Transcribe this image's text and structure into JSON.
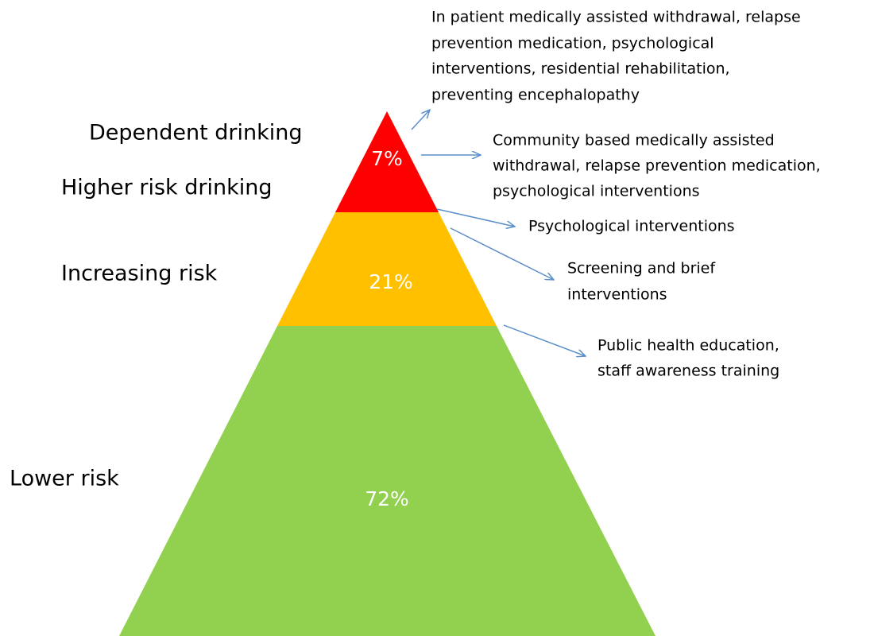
{
  "levels": [
    {
      "label": "Dependent drinking",
      "percent": "7%"
    },
    {
      "label": "Higher risk drinking"
    },
    {
      "label": "Increasing risk",
      "percent": "21%"
    },
    {
      "label": "Lower risk",
      "percent": "72%"
    }
  ],
  "interventions": [
    {
      "lines": [
        "In patient medically assisted withdrawal, relapse",
        "prevention medication, psychological",
        "interventions, residential rehabilitation,",
        "preventing encephalopathy"
      ]
    },
    {
      "lines": [
        "Community based medically assisted",
        "withdrawal, relapse prevention medication,",
        "psychological interventions"
      ]
    },
    {
      "lines": [
        "Psychological interventions"
      ]
    },
    {
      "lines": [
        "Screening and brief",
        "interventions"
      ]
    },
    {
      "lines": [
        "Public health education,",
        "staff awareness training"
      ]
    }
  ]
}
